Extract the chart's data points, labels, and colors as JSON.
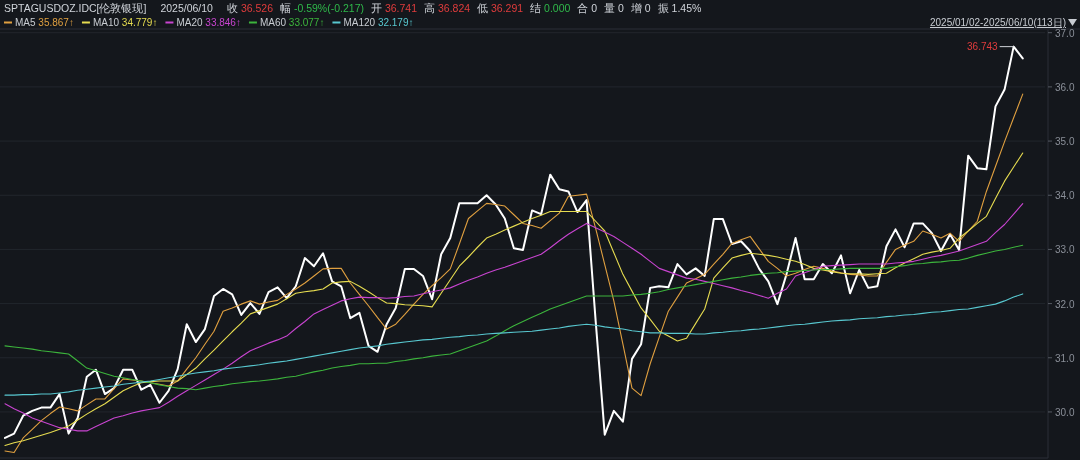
{
  "chart_data": {
    "type": "line",
    "annotations": [
      "SPTAGUSDOZ.IDC[伦敦银现]",
      "2025/06/10",
      "收 36.526",
      "幅 -0.59%(-0.217)",
      "开 36.741",
      "高 36.824",
      "低 36.291",
      "结 0.000",
      "合 0",
      "量 0",
      "增 0",
      "振 1.45%",
      "2025/01/02-2025/06/10(113日)",
      "36.743"
    ],
    "categories": [
      null,
      null,
      null,
      null,
      null,
      null,
      null,
      null,
      null,
      null,
      null,
      null,
      null,
      null,
      null,
      null,
      null,
      null,
      null,
      null,
      null,
      null,
      null,
      null,
      null,
      null,
      null,
      null,
      null,
      null,
      null,
      null,
      null,
      null,
      null,
      null,
      null,
      null,
      null,
      null,
      null,
      null,
      null,
      null,
      null,
      null,
      null,
      null,
      null,
      null,
      null,
      null,
      null,
      null,
      null,
      null,
      null,
      null,
      null,
      null,
      null,
      null,
      null,
      null,
      null,
      null,
      null,
      null,
      null,
      null,
      null,
      null,
      null,
      null,
      null,
      null,
      null,
      null,
      null,
      null,
      null,
      null,
      null,
      null,
      null,
      null,
      null,
      null,
      null,
      null,
      null,
      null,
      null,
      null,
      null,
      null,
      null,
      null,
      null,
      null,
      null,
      null,
      null,
      null,
      null,
      null,
      null,
      null,
      null,
      null,
      null,
      null,
      null
    ],
    "ylim": [
      29.15,
      37.05
    ],
    "yticks": [
      {
        "value": 30,
        "label": "30.0"
      },
      {
        "value": 31,
        "label": "31.0"
      },
      {
        "value": 32,
        "label": "32.0"
      },
      {
        "value": 33,
        "label": "33.0"
      },
      {
        "value": 34,
        "label": "34.0"
      },
      {
        "value": 35,
        "label": "35.0"
      },
      {
        "value": 36,
        "label": "36.0"
      },
      {
        "value": 37,
        "label": "37.0"
      }
    ],
    "tick_labels": "y",
    "grid": "y",
    "legend": "top left",
    "series": [
      {
        "color": "#ffffff",
        "values": [
          29.52,
          29.6,
          29.93,
          30.02,
          30.08,
          30.08,
          30.33,
          29.6,
          29.89,
          30.65,
          30.78,
          30.33,
          30.44,
          30.78,
          30.78,
          30.41,
          30.5,
          30.17,
          30.39,
          30.79,
          31.62,
          31.29,
          31.53,
          32.14,
          32.27,
          32.17,
          31.79,
          32.01,
          31.81,
          32.21,
          32.3,
          32.1,
          32.32,
          32.84,
          32.69,
          32.93,
          32.41,
          32.32,
          31.73,
          31.83,
          31.22,
          31.11,
          31.62,
          31.92,
          32.64,
          32.64,
          32.51,
          32.08,
          32.91,
          33.21,
          33.85,
          33.85,
          33.85,
          34.0,
          33.83,
          33.57,
          33.02,
          32.99,
          33.72,
          33.65,
          34.38,
          34.11,
          34.07,
          33.69,
          33.91,
          31.68,
          29.58,
          30.02,
          29.82,
          30.98,
          31.25,
          32.29,
          32.32,
          32.3,
          32.73,
          32.54,
          32.65,
          32.51,
          33.56,
          33.56,
          33.1,
          33.15,
          32.97,
          32.64,
          32.41,
          31.99,
          32.54,
          33.21,
          32.45,
          32.45,
          32.73,
          32.56,
          32.89,
          32.19,
          32.62,
          32.29,
          32.32,
          33.06,
          33.37,
          33.04,
          33.48,
          33.48,
          33.3,
          32.97,
          33.28,
          32.99,
          34.73,
          34.5,
          34.48,
          35.64,
          35.95,
          36.743,
          36.526
        ]
      },
      {
        "name": "MA5 35.867↑",
        "color": "#e0a040",
        "values": [
          29.28,
          29.25,
          29.52,
          29.68,
          29.84,
          29.97,
          30.09,
          30.06,
          30.02,
          30.13,
          30.24,
          30.24,
          30.43,
          30.61,
          30.59,
          30.57,
          30.54,
          30.51,
          30.48,
          30.57,
          30.79,
          31.0,
          31.25,
          31.49,
          31.86,
          31.92,
          31.99,
          32.05,
          31.99,
          32.03,
          32.06,
          32.17,
          32.27,
          32.38,
          32.51,
          32.64,
          32.65,
          32.65,
          32.38,
          32.17,
          31.96,
          31.74,
          31.53,
          31.62,
          31.8,
          31.99,
          32.17,
          32.33,
          32.48,
          32.64,
          33.1,
          33.57,
          33.71,
          33.85,
          33.83,
          33.8,
          33.64,
          33.48,
          33.44,
          33.39,
          33.53,
          33.67,
          33.98,
          34.0,
          34.02,
          33.39,
          32.72,
          32.05,
          31.25,
          30.44,
          30.3,
          30.89,
          31.38,
          31.86,
          32.12,
          32.38,
          32.46,
          32.54,
          32.73,
          32.91,
          33.11,
          33.18,
          33.24,
          33.01,
          32.78,
          32.65,
          32.51,
          32.56,
          32.63,
          32.69,
          32.65,
          32.6,
          32.57,
          32.54,
          32.53,
          32.51,
          32.51,
          32.76,
          33.0,
          33.08,
          33.15,
          33.34,
          33.28,
          33.21,
          33.3,
          33.15,
          33.34,
          33.52,
          34.07,
          34.53,
          34.99,
          35.43,
          35.867
        ]
      },
      {
        "name": "MA10 34.779↑",
        "color": "#e6dc50",
        "values": [
          29.38,
          29.43,
          29.47,
          29.52,
          29.57,
          29.62,
          29.68,
          29.74,
          29.85,
          29.96,
          30.06,
          30.15,
          30.27,
          30.39,
          30.47,
          30.54,
          30.56,
          30.57,
          30.57,
          30.57,
          30.69,
          30.81,
          30.98,
          31.14,
          31.31,
          31.48,
          31.64,
          31.81,
          31.87,
          31.93,
          31.99,
          32.09,
          32.19,
          32.22,
          32.24,
          32.27,
          32.38,
          32.4,
          32.41,
          32.32,
          32.22,
          32.11,
          32.01,
          32.0,
          31.98,
          31.97,
          31.96,
          31.94,
          32.19,
          32.44,
          32.69,
          32.86,
          33.04,
          33.21,
          33.28,
          33.36,
          33.43,
          33.5,
          33.57,
          33.63,
          33.7,
          33.7,
          33.7,
          33.7,
          33.7,
          33.52,
          33.34,
          32.94,
          32.54,
          32.23,
          31.92,
          31.71,
          31.49,
          31.4,
          31.31,
          31.36,
          31.63,
          31.9,
          32.47,
          32.66,
          32.84,
          32.89,
          32.93,
          32.91,
          32.89,
          32.86,
          32.82,
          32.78,
          32.72,
          32.65,
          32.62,
          32.59,
          32.56,
          32.55,
          32.55,
          32.54,
          32.55,
          32.56,
          32.66,
          32.75,
          32.83,
          32.91,
          32.95,
          32.98,
          33.02,
          33.21,
          33.34,
          33.48,
          33.61,
          33.94,
          34.26,
          34.52,
          34.779
        ]
      },
      {
        "name": "MA20 33.846↑",
        "color": "#c844d0",
        "values": [
          30.15,
          30.06,
          29.98,
          29.89,
          29.83,
          29.77,
          29.71,
          29.68,
          29.65,
          29.65,
          29.73,
          29.81,
          29.89,
          29.93,
          29.98,
          30.02,
          30.05,
          30.08,
          30.18,
          30.29,
          30.39,
          30.49,
          30.59,
          30.69,
          30.79,
          30.9,
          31.02,
          31.13,
          31.2,
          31.27,
          31.33,
          31.4,
          31.54,
          31.67,
          31.81,
          31.89,
          31.97,
          32.05,
          32.09,
          32.12,
          32.11,
          32.11,
          32.1,
          32.11,
          32.13,
          32.14,
          32.18,
          32.22,
          32.25,
          32.29,
          32.36,
          32.43,
          32.49,
          32.56,
          32.62,
          32.67,
          32.73,
          32.79,
          32.85,
          32.91,
          33.03,
          33.16,
          33.28,
          33.38,
          33.48,
          33.4,
          33.32,
          33.24,
          33.13,
          33.02,
          32.91,
          32.78,
          32.65,
          32.59,
          32.53,
          32.47,
          32.45,
          32.41,
          32.37,
          32.33,
          32.29,
          32.24,
          32.2,
          32.15,
          32.1,
          32.19,
          32.27,
          32.51,
          32.57,
          32.63,
          32.69,
          32.7,
          32.71,
          32.72,
          32.73,
          32.73,
          32.73,
          32.73,
          32.75,
          32.76,
          32.78,
          32.82,
          32.86,
          32.89,
          32.93,
          32.97,
          33.03,
          33.09,
          33.15,
          33.31,
          33.46,
          33.65,
          33.846
        ]
      },
      {
        "name": "MA60 33.077↑",
        "color": "#3cb43c",
        "values": [
          31.22,
          31.2,
          31.18,
          31.16,
          31.13,
          31.11,
          31.09,
          31.07,
          30.94,
          30.81,
          30.76,
          30.71,
          30.66,
          30.63,
          30.6,
          30.57,
          30.54,
          30.5,
          30.47,
          30.44,
          30.43,
          30.41,
          30.44,
          30.47,
          30.49,
          30.52,
          30.54,
          30.56,
          30.57,
          30.59,
          30.61,
          30.64,
          30.66,
          30.7,
          30.74,
          30.77,
          30.81,
          30.84,
          30.86,
          30.89,
          30.89,
          30.9,
          30.9,
          30.93,
          30.95,
          30.98,
          31.0,
          31.03,
          31.05,
          31.07,
          31.13,
          31.19,
          31.25,
          31.31,
          31.4,
          31.5,
          31.59,
          31.67,
          31.75,
          31.82,
          31.9,
          31.96,
          32.02,
          32.08,
          32.14,
          32.14,
          32.14,
          32.14,
          32.14,
          32.16,
          32.17,
          32.19,
          32.22,
          32.26,
          32.29,
          32.32,
          32.35,
          32.38,
          32.41,
          32.44,
          32.47,
          32.49,
          32.52,
          32.54,
          32.56,
          32.57,
          32.59,
          32.6,
          32.61,
          32.62,
          32.63,
          32.63,
          32.64,
          32.65,
          32.65,
          32.65,
          32.65,
          32.65,
          32.68,
          32.7,
          32.73,
          32.74,
          32.76,
          32.77,
          32.79,
          32.8,
          32.84,
          32.89,
          32.93,
          32.97,
          33.0,
          33.04,
          33.077
        ]
      },
      {
        "name": "MA120 32.179↑",
        "color": "#58c8d0",
        "values": [
          30.31,
          30.31,
          30.32,
          30.32,
          30.33,
          30.33,
          30.35,
          30.37,
          30.4,
          30.42,
          30.44,
          30.46,
          30.48,
          30.51,
          30.53,
          30.55,
          30.57,
          30.6,
          30.63,
          30.66,
          30.69,
          30.72,
          30.74,
          30.76,
          30.79,
          30.81,
          30.83,
          30.85,
          30.87,
          30.9,
          30.92,
          30.94,
          30.97,
          31.0,
          31.03,
          31.06,
          31.09,
          31.12,
          31.15,
          31.18,
          31.2,
          31.22,
          31.25,
          31.27,
          31.29,
          31.31,
          31.33,
          31.34,
          31.36,
          31.38,
          31.39,
          31.41,
          31.42,
          31.44,
          31.45,
          31.46,
          31.47,
          31.48,
          31.49,
          31.51,
          31.53,
          31.55,
          31.58,
          31.6,
          31.62,
          31.6,
          31.57,
          31.55,
          31.53,
          31.5,
          31.48,
          31.46,
          31.46,
          31.45,
          31.45,
          31.45,
          31.44,
          31.44,
          31.46,
          31.47,
          31.49,
          31.5,
          31.52,
          31.53,
          31.55,
          31.57,
          31.59,
          31.61,
          31.62,
          31.64,
          31.66,
          31.68,
          31.69,
          31.7,
          31.72,
          31.73,
          31.74,
          31.76,
          31.77,
          31.79,
          31.8,
          31.82,
          31.84,
          31.85,
          31.87,
          31.89,
          31.9,
          31.93,
          31.96,
          31.99,
          32.05,
          32.12,
          32.179
        ]
      }
    ]
  }
}
